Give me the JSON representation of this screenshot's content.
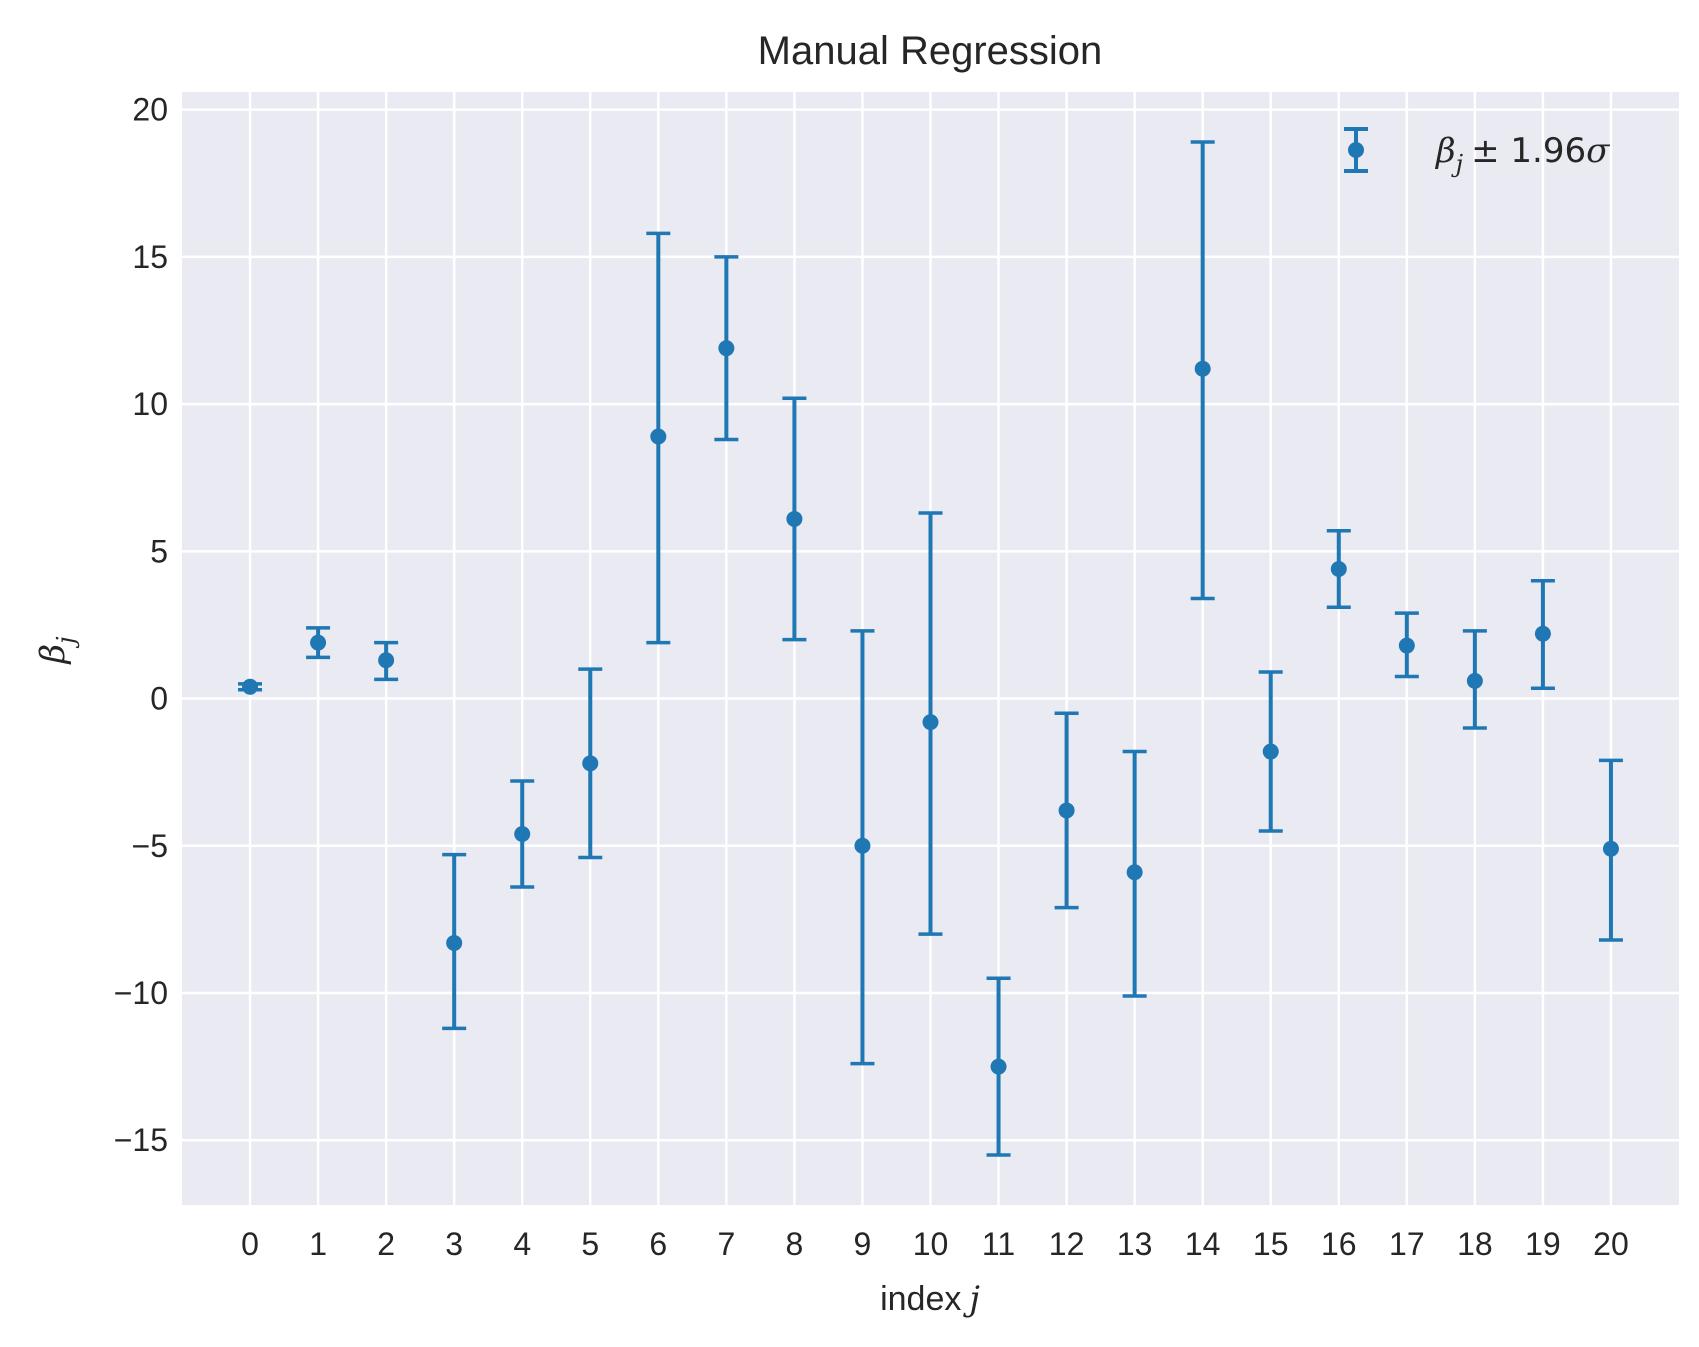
{
  "chart_data": {
    "type": "scatter",
    "style": "errorbar",
    "title": "Manual Regression",
    "xlabel": {
      "text": "index",
      "symbol": "j"
    },
    "ylabel": {
      "symbol": "β",
      "subscript": "j"
    },
    "legend": {
      "symbol": "β",
      "subscript": "j",
      "suffix": "± 1.96",
      "sigma": "σ",
      "placement": "top-right"
    },
    "xlim": [
      -1.0,
      21.0
    ],
    "ylim": [
      -17.2,
      20.6
    ],
    "xticks": [
      0,
      1,
      2,
      3,
      4,
      5,
      6,
      7,
      8,
      9,
      10,
      11,
      12,
      13,
      14,
      15,
      16,
      17,
      18,
      19,
      20
    ],
    "yticks": [
      -15,
      -10,
      -5,
      0,
      5,
      10,
      15,
      20
    ],
    "ytick_labels": [
      "−15",
      "−10",
      "−5",
      "0",
      "5",
      "10",
      "15",
      "20"
    ],
    "grid": true,
    "colors": {
      "series": "#1f77b4",
      "background": "#eaeaf2",
      "grid": "#ffffff",
      "text": "#262626"
    },
    "series": [
      {
        "x": [
          0,
          1,
          2,
          3,
          4,
          5,
          6,
          7,
          8,
          9,
          10,
          11,
          12,
          13,
          14,
          15,
          16,
          17,
          18,
          19,
          20
        ],
        "y": [
          0.4,
          1.9,
          1.3,
          -8.3,
          -4.6,
          -2.2,
          8.9,
          11.9,
          6.1,
          -5.0,
          -0.8,
          -12.5,
          -3.8,
          -5.9,
          11.2,
          -1.8,
          4.4,
          1.8,
          0.6,
          2.2,
          -5.1
        ],
        "err_low": [
          0.3,
          1.4,
          0.65,
          -11.2,
          -6.4,
          -5.4,
          1.9,
          8.8,
          2.0,
          -12.4,
          -8.0,
          -15.5,
          -7.1,
          -10.1,
          3.4,
          -4.5,
          3.1,
          0.75,
          -1.0,
          0.35,
          -8.2
        ],
        "err_high": [
          0.5,
          2.4,
          1.9,
          -5.3,
          -2.8,
          1.0,
          15.8,
          15.0,
          10.2,
          2.3,
          6.3,
          -9.5,
          -0.5,
          -1.8,
          18.9,
          0.9,
          5.7,
          2.9,
          2.3,
          4.0,
          -2.1
        ]
      }
    ]
  }
}
